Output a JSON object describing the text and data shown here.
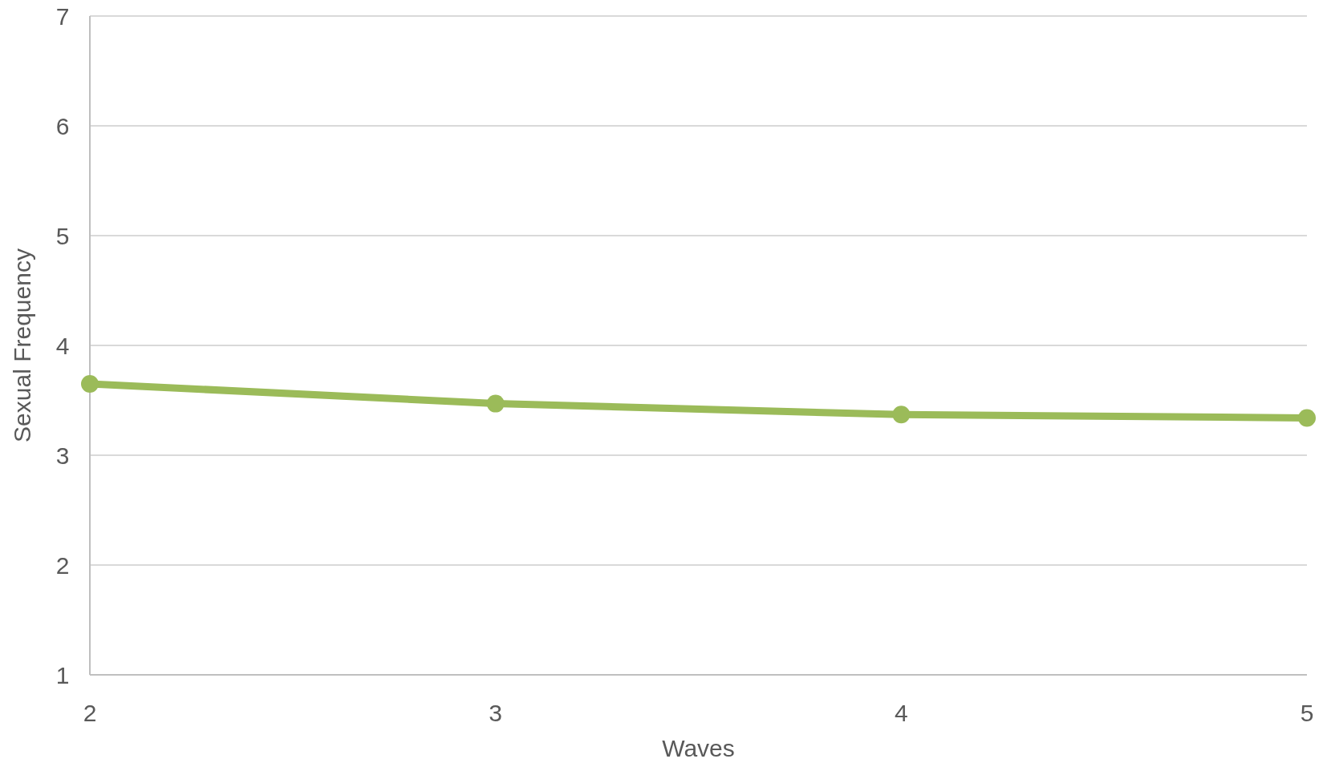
{
  "chart_data": {
    "type": "line",
    "xlabel": "Waves",
    "ylabel": "Sexual Frequency",
    "x": [
      2,
      3,
      4,
      5
    ],
    "series": [
      {
        "color": "#9bbb59",
        "values": [
          3.65,
          3.47,
          3.37,
          3.34
        ]
      }
    ],
    "xlim": [
      2,
      5
    ],
    "xticks": [
      2,
      3,
      4,
      5
    ],
    "ylim": [
      1,
      7
    ],
    "yticks": [
      1,
      2,
      3,
      4,
      5,
      6,
      7
    ],
    "grid": "y",
    "marker": "circle",
    "line_style": "solid"
  }
}
